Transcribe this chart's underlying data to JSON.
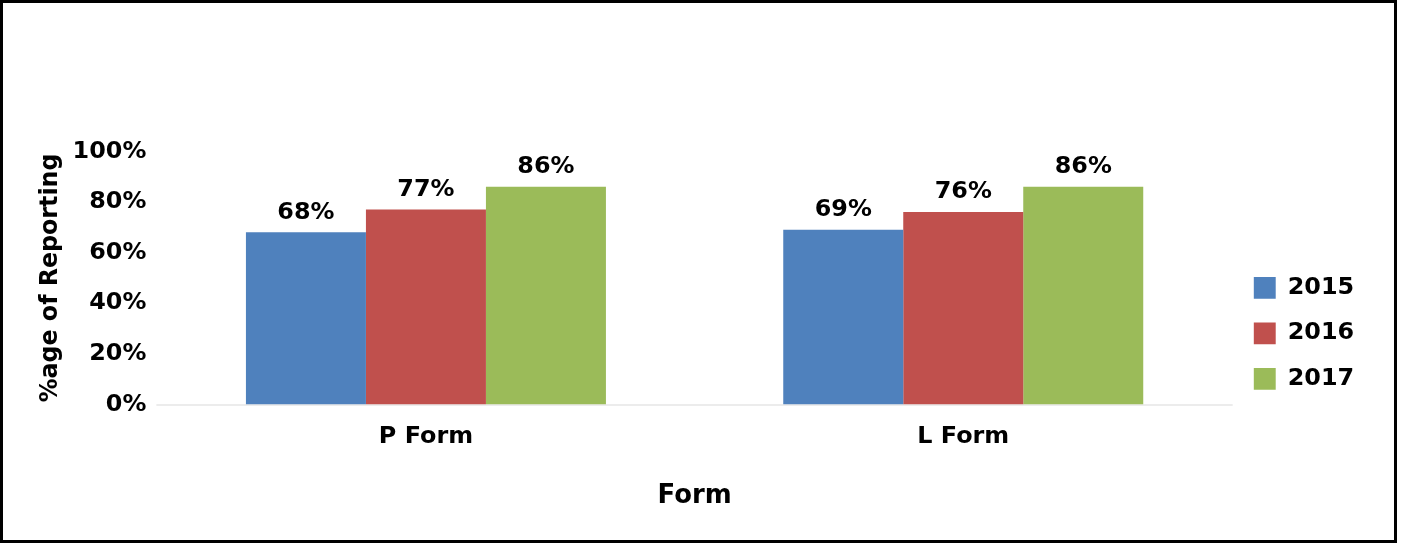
{
  "chart_data": {
    "type": "bar",
    "xlabel": "Form",
    "ylabel": "%age of Reporting",
    "categories": [
      "P Form",
      "L Form"
    ],
    "series": [
      {
        "name": "2015",
        "color": "#4f81bd",
        "values": [
          68,
          69
        ],
        "value_labels": [
          "68%",
          "69%"
        ]
      },
      {
        "name": "2016",
        "color": "#c0504d",
        "values": [
          77,
          76
        ],
        "value_labels": [
          "77%",
          "76%"
        ]
      },
      {
        "name": "2017",
        "color": "#9bbb59",
        "values": [
          86,
          86
        ],
        "value_labels": [
          "86%",
          "86%"
        ]
      }
    ],
    "ylim": [
      0,
      100
    ],
    "yticks": [
      {
        "value": 0,
        "label": "0%"
      },
      {
        "value": 20,
        "label": "20%"
      },
      {
        "value": 40,
        "label": "40%"
      },
      {
        "value": 60,
        "label": "60%"
      },
      {
        "value": 80,
        "label": "80%"
      },
      {
        "value": 100,
        "label": "100%"
      }
    ],
    "grid": false,
    "legend": "right"
  }
}
